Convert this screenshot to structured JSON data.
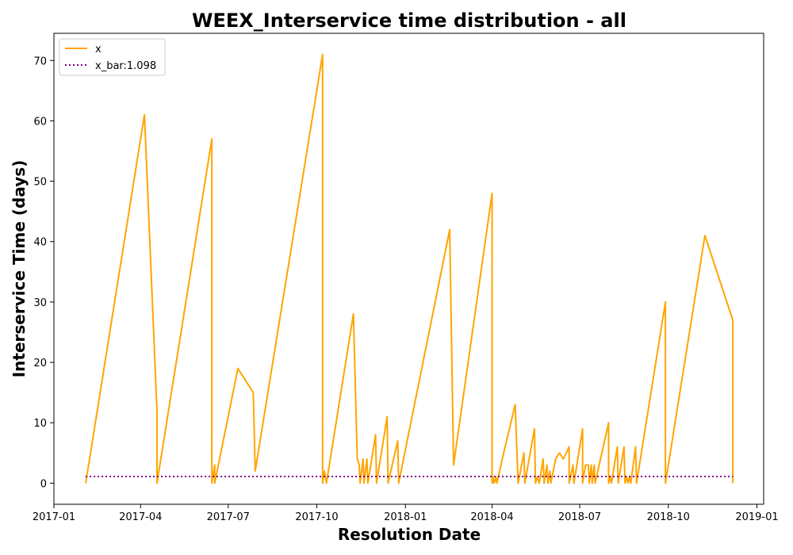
{
  "chart_data": {
    "type": "line",
    "title": "WEEX_Interservice time distribution - all",
    "xlabel": "Resolution Date",
    "ylabel": "Interservice Time (days)",
    "xlim": [
      "2017-01-01",
      "2019-01-08"
    ],
    "ylim": [
      -3.5,
      74.5
    ],
    "x_ticks": [
      "2017-01-01",
      "2017-04-01",
      "2017-07-01",
      "2017-10-01",
      "2018-01-01",
      "2018-04-01",
      "2018-07-01",
      "2018-10-01",
      "2019-01-01"
    ],
    "x_tick_labels": [
      "2017-01",
      "2017-04",
      "2017-07",
      "2017-10",
      "2018-01",
      "2018-04",
      "2018-07",
      "2018-10",
      "2019-01"
    ],
    "y_ticks": [
      0,
      10,
      20,
      30,
      40,
      50,
      60,
      70
    ],
    "y_tick_labels": [
      "0",
      "10",
      "20",
      "30",
      "40",
      "50",
      "60",
      "70"
    ],
    "grid": false,
    "legend_position": "top-left",
    "series": [
      {
        "name": "x",
        "color": "#FFA500",
        "style": "solid",
        "points": [
          [
            "2017-02-03",
            0
          ],
          [
            "2017-04-05",
            61
          ],
          [
            "2017-04-18",
            12
          ],
          [
            "2017-04-18",
            0
          ],
          [
            "2017-06-14",
            57
          ],
          [
            "2017-06-14",
            0
          ],
          [
            "2017-06-17",
            3
          ],
          [
            "2017-06-17",
            0
          ],
          [
            "2017-07-11",
            19
          ],
          [
            "2017-07-27",
            15
          ],
          [
            "2017-07-29",
            2
          ],
          [
            "2017-10-07",
            71
          ],
          [
            "2017-10-07",
            0
          ],
          [
            "2017-10-09",
            2
          ],
          [
            "2017-10-11",
            0
          ],
          [
            "2017-11-08",
            28
          ],
          [
            "2017-11-12",
            4
          ],
          [
            "2017-11-14",
            3
          ],
          [
            "2017-11-15",
            0
          ],
          [
            "2017-11-18",
            4
          ],
          [
            "2017-11-19",
            0
          ],
          [
            "2017-11-22",
            4
          ],
          [
            "2017-11-23",
            0
          ],
          [
            "2017-12-01",
            8
          ],
          [
            "2017-12-02",
            0
          ],
          [
            "2017-12-13",
            11
          ],
          [
            "2017-12-14",
            0
          ],
          [
            "2017-12-24",
            7
          ],
          [
            "2017-12-25",
            0
          ],
          [
            "2018-02-16",
            42
          ],
          [
            "2018-02-20",
            3
          ],
          [
            "2018-04-01",
            48
          ],
          [
            "2018-04-01",
            0
          ],
          [
            "2018-04-02",
            1
          ],
          [
            "2018-04-03",
            0
          ],
          [
            "2018-04-05",
            1
          ],
          [
            "2018-04-06",
            0
          ],
          [
            "2018-04-13",
            5
          ],
          [
            "2018-04-25",
            13
          ],
          [
            "2018-04-28",
            0
          ],
          [
            "2018-05-04",
            5
          ],
          [
            "2018-05-05",
            0
          ],
          [
            "2018-05-15",
            9
          ],
          [
            "2018-05-16",
            0
          ],
          [
            "2018-05-18",
            1
          ],
          [
            "2018-05-20",
            0
          ],
          [
            "2018-05-24",
            4
          ],
          [
            "2018-05-25",
            0
          ],
          [
            "2018-05-28",
            3
          ],
          [
            "2018-05-29",
            0
          ],
          [
            "2018-05-31",
            2
          ],
          [
            "2018-06-01",
            0
          ],
          [
            "2018-06-06",
            4
          ],
          [
            "2018-06-10",
            5
          ],
          [
            "2018-06-14",
            4
          ],
          [
            "2018-06-20",
            6
          ],
          [
            "2018-06-20",
            0
          ],
          [
            "2018-06-24",
            3
          ],
          [
            "2018-06-25",
            0
          ],
          [
            "2018-07-04",
            9
          ],
          [
            "2018-07-04",
            0
          ],
          [
            "2018-07-07",
            3
          ],
          [
            "2018-07-10",
            3
          ],
          [
            "2018-07-11",
            0
          ],
          [
            "2018-07-13",
            3
          ],
          [
            "2018-07-14",
            0
          ],
          [
            "2018-07-16",
            3
          ],
          [
            "2018-07-17",
            0
          ],
          [
            "2018-07-31",
            10
          ],
          [
            "2018-07-31",
            0
          ],
          [
            "2018-08-02",
            1
          ],
          [
            "2018-08-03",
            0
          ],
          [
            "2018-08-09",
            6
          ],
          [
            "2018-08-10",
            0
          ],
          [
            "2018-08-16",
            6
          ],
          [
            "2018-08-17",
            0
          ],
          [
            "2018-08-19",
            1
          ],
          [
            "2018-08-20",
            0
          ],
          [
            "2018-08-22",
            1
          ],
          [
            "2018-08-23",
            0
          ],
          [
            "2018-08-28",
            6
          ],
          [
            "2018-08-29",
            0
          ],
          [
            "2018-09-28",
            30
          ],
          [
            "2018-09-28",
            0
          ],
          [
            "2018-11-08",
            41
          ],
          [
            "2018-12-07",
            27
          ],
          [
            "2018-12-07",
            0
          ]
        ]
      },
      {
        "name": "x_bar:1.098",
        "color": "#800080",
        "style": "dotted",
        "points": [
          [
            "2017-02-03",
            1.098
          ],
          [
            "2018-12-07",
            1.098
          ]
        ]
      }
    ]
  }
}
